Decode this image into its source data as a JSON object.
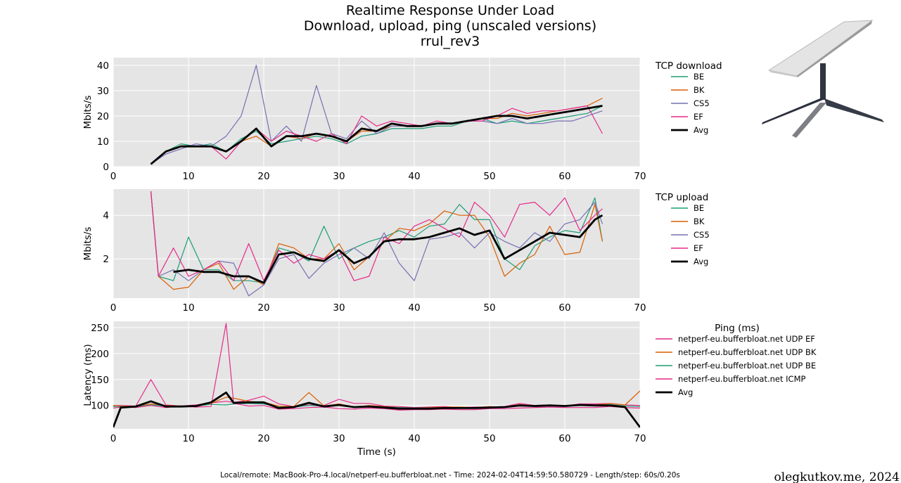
{
  "title": {
    "line1": "Realtime Response Under Load",
    "line2": "Download, upload, ping (unscaled versions)",
    "line3": "rrul_rev3"
  },
  "footer": "Local/remote: MacBook-Pro-4.local/netperf-eu.bufferbloat.net - Time: 2024-02-04T14:59:50.580729 - Length/step: 60s/0.20s",
  "credit": "olegkutkov.me, 2024",
  "colors": {
    "BE": "#1b9e77",
    "BK": "#d95f02",
    "CS5": "#7570b3",
    "EF": "#e7298a",
    "Avg": "#000000",
    "plot_bg": "#e5e5e5",
    "grid": "#ffffff"
  },
  "chart_data": [
    {
      "type": "line",
      "legend_title": "TCP download",
      "ylabel": "Mbits/s",
      "xlabel": "",
      "xlim": [
        0,
        70
      ],
      "ylim": [
        0,
        43
      ],
      "xticks": [
        0,
        10,
        20,
        30,
        40,
        50,
        60,
        70
      ],
      "yticks": [
        0,
        10,
        20,
        30,
        40
      ],
      "grid": true,
      "legend_position": "right",
      "x": [
        5,
        7,
        9,
        11,
        13,
        15,
        17,
        19,
        21,
        23,
        25,
        27,
        29,
        31,
        33,
        35,
        37,
        39,
        41,
        43,
        45,
        47,
        49,
        51,
        53,
        55,
        57,
        59,
        61,
        63,
        65
      ],
      "series": [
        {
          "name": "BE",
          "values": [
            1,
            6,
            9,
            8,
            9,
            6,
            11,
            14,
            9,
            10,
            11,
            12,
            11,
            9,
            12,
            13,
            15,
            15,
            15,
            16,
            16,
            18,
            19,
            17,
            18,
            17,
            18,
            19,
            20,
            21,
            24
          ]
        },
        {
          "name": "BK",
          "values": [
            1,
            6,
            8,
            8,
            8,
            6,
            10,
            12,
            8,
            12,
            11,
            13,
            12,
            10,
            14,
            14,
            16,
            16,
            16,
            17,
            17,
            18,
            19,
            19,
            21,
            20,
            21,
            22,
            23,
            24,
            27
          ]
        },
        {
          "name": "CS5",
          "values": [
            1,
            5,
            7,
            9,
            8,
            12,
            20,
            40,
            10,
            16,
            10,
            32,
            13,
            11,
            18,
            13,
            16,
            16,
            16,
            17,
            17,
            18,
            18,
            17,
            19,
            17,
            17,
            18,
            18,
            20,
            22
          ]
        },
        {
          "name": "EF",
          "values": [
            1,
            6,
            8,
            8,
            8,
            3,
            10,
            15,
            10,
            14,
            12,
            10,
            13,
            9,
            20,
            16,
            18,
            17,
            16,
            18,
            17,
            18,
            18,
            20,
            23,
            21,
            22,
            22,
            23,
            24,
            13
          ]
        },
        {
          "name": "Avg",
          "values": [
            1,
            6,
            8,
            8,
            8,
            6,
            10,
            15,
            8,
            12,
            12,
            13,
            12,
            10,
            15,
            14,
            17,
            16,
            16,
            17,
            17,
            18,
            19,
            20,
            20,
            19,
            20,
            21,
            22,
            23,
            24
          ]
        }
      ]
    },
    {
      "type": "line",
      "legend_title": "TCP upload",
      "ylabel": "Mbits/s",
      "xlabel": "",
      "xlim": [
        0,
        70
      ],
      "ylim": [
        0.2,
        5.2
      ],
      "xticks": [
        0,
        10,
        20,
        30,
        40,
        50,
        60,
        70
      ],
      "yticks": [
        2,
        4
      ],
      "grid": true,
      "legend_position": "right",
      "x": [
        5,
        6,
        8,
        10,
        12,
        14,
        16,
        18,
        20,
        22,
        24,
        26,
        28,
        30,
        32,
        34,
        36,
        38,
        40,
        42,
        44,
        46,
        48,
        50,
        52,
        54,
        56,
        58,
        60,
        62,
        64,
        65
      ],
      "series": [
        {
          "name": "BE",
          "values": [
            5.1,
            1.2,
            1.0,
            3.0,
            1.5,
            1.5,
            1.0,
            1.0,
            0.9,
            2.5,
            2.3,
            1.9,
            3.5,
            2.0,
            2.5,
            2.8,
            3.0,
            3.3,
            3.0,
            3.5,
            3.6,
            4.5,
            3.8,
            3.8,
            2.0,
            1.5,
            2.6,
            3.0,
            3.3,
            3.2,
            4.8,
            2.8
          ]
        },
        {
          "name": "BK",
          "values": [
            5.1,
            1.2,
            0.6,
            0.7,
            1.5,
            1.8,
            0.6,
            1.2,
            0.8,
            2.7,
            2.5,
            2.0,
            2.0,
            2.7,
            1.5,
            2.1,
            2.8,
            3.4,
            3.3,
            3.6,
            4.2,
            4.0,
            4.0,
            3.0,
            1.2,
            1.8,
            2.2,
            3.5,
            2.2,
            2.3,
            4.5,
            2.8
          ]
        },
        {
          "name": "CS5",
          "values": [
            5.1,
            1.2,
            1.5,
            1.0,
            1.5,
            1.9,
            1.8,
            0.3,
            0.8,
            2.0,
            2.2,
            1.1,
            1.8,
            2.2,
            2.5,
            2.0,
            3.2,
            1.8,
            1.0,
            2.9,
            3.0,
            3.2,
            2.5,
            3.2,
            2.8,
            2.5,
            3.2,
            2.8,
            3.6,
            3.8,
            4.6,
            3.6
          ]
        },
        {
          "name": "EF",
          "values": [
            5.1,
            1.2,
            2.5,
            1.2,
            1.5,
            1.9,
            1.0,
            2.7,
            1.0,
            2.4,
            1.8,
            2.2,
            2.0,
            2.4,
            1.0,
            1.2,
            3.0,
            2.7,
            3.5,
            3.8,
            3.4,
            3.0,
            4.6,
            4.0,
            3.0,
            4.5,
            4.6,
            4.0,
            4.8,
            3.3,
            4.0,
            4.3
          ]
        },
        {
          "name": "Avg",
          "values": [
            null,
            null,
            1.4,
            1.5,
            1.4,
            1.4,
            1.2,
            1.2,
            0.9,
            2.2,
            2.3,
            2.0,
            1.9,
            2.4,
            1.8,
            2.1,
            2.8,
            2.9,
            2.9,
            3.0,
            3.2,
            3.4,
            3.1,
            3.3,
            2.0,
            2.4,
            2.8,
            3.2,
            3.1,
            3.0,
            3.8,
            4.0
          ]
        }
      ]
    },
    {
      "type": "line",
      "legend_title": "Ping (ms)",
      "ylabel": "Latency (ms)",
      "xlabel": "Time (s)",
      "xlim": [
        0,
        70
      ],
      "ylim": [
        55,
        262
      ],
      "xticks": [
        0,
        10,
        20,
        30,
        40,
        50,
        60,
        70
      ],
      "yticks": [
        100,
        150,
        200,
        250
      ],
      "grid": true,
      "legend_position": "right",
      "x": [
        0,
        1,
        3,
        5,
        7,
        9,
        11,
        13,
        15,
        16,
        18,
        20,
        22,
        24,
        26,
        28,
        30,
        32,
        34,
        36,
        38,
        40,
        42,
        44,
        46,
        48,
        50,
        52,
        54,
        56,
        58,
        60,
        62,
        64,
        66,
        68,
        70
      ],
      "series": [
        {
          "name": "netperf-eu.bufferbloat.net UDP EF",
          "values": [
            100,
            100,
            99,
            150,
            101,
            99,
            101,
            105,
            108,
            106,
            110,
            118,
            103,
            98,
            101,
            100,
            112,
            104,
            104,
            99,
            98,
            96,
            97,
            98,
            96,
            97,
            97,
            98,
            104,
            100,
            101,
            99,
            103,
            103,
            104,
            101,
            100
          ]
        },
        {
          "name": "netperf-eu.bufferbloat.net UDP BK",
          "values": [
            100,
            99,
            98,
            103,
            100,
            99,
            99,
            104,
            116,
            114,
            108,
            106,
            99,
            98,
            125,
            99,
            103,
            97,
            100,
            98,
            96,
            95,
            96,
            97,
            97,
            96,
            98,
            97,
            102,
            99,
            101,
            99,
            102,
            101,
            104,
            101,
            128
          ]
        },
        {
          "name": "netperf-eu.bufferbloat.net UDP BE",
          "values": [
            98,
            98,
            97,
            101,
            99,
            98,
            99,
            102,
            101,
            103,
            104,
            103,
            97,
            97,
            100,
            99,
            101,
            96,
            99,
            97,
            96,
            95,
            95,
            96,
            96,
            96,
            96,
            97,
            101,
            98,
            100,
            99,
            101,
            100,
            102,
            99,
            98
          ]
        },
        {
          "name": "netperf-eu.bufferbloat.net ICMP",
          "values": [
            95,
            97,
            96,
            100,
            96,
            99,
            97,
            98,
            258,
            104,
            99,
            100,
            93,
            94,
            96,
            97,
            94,
            93,
            95,
            94,
            91,
            92,
            92,
            93,
            92,
            92,
            94,
            94,
            95,
            96,
            97,
            96,
            96,
            96,
            98,
            96,
            95
          ]
        },
        {
          "name": "Avg",
          "values": [
            58,
            96,
            98,
            108,
            98,
            98,
            99,
            106,
            125,
            105,
            106,
            106,
            95,
            97,
            105,
            98,
            101,
            97,
            98,
            96,
            94,
            94,
            94,
            95,
            95,
            95,
            96,
            97,
            100,
            99,
            100,
            99,
            101,
            100,
            100,
            97,
            58
          ]
        }
      ]
    }
  ]
}
